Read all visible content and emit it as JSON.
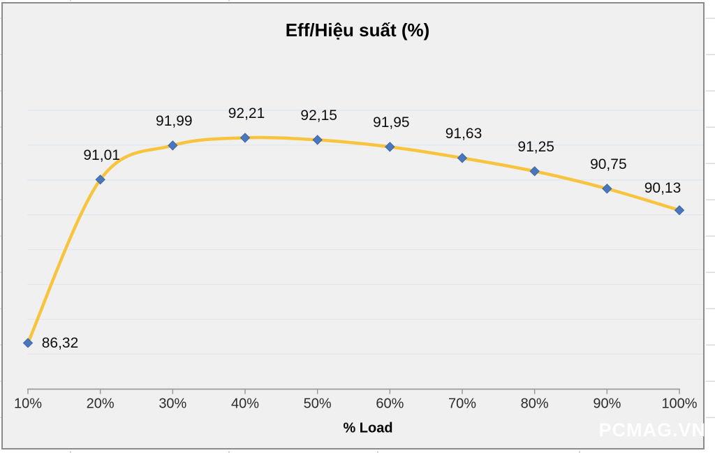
{
  "chart": {
    "title": "Eff/Hiệu suất (%)",
    "x_axis_title": "% Load",
    "watermark": "PCMAG.VN"
  },
  "chart_data": {
    "type": "line",
    "title": "Eff/Hiệu suất (%)",
    "xlabel": "% Load",
    "ylabel": "",
    "categories": [
      "10%",
      "20%",
      "30%",
      "40%",
      "50%",
      "60%",
      "70%",
      "80%",
      "90%",
      "100%"
    ],
    "series": [
      {
        "name": "Eff/Hiệu suất (%)",
        "values": [
          86.32,
          91.01,
          91.99,
          92.21,
          92.15,
          91.95,
          91.63,
          91.25,
          90.75,
          90.13
        ],
        "point_labels": [
          "86,32",
          "91,01",
          "91,99",
          "92,21",
          "92,15",
          "91,95",
          "91,63",
          "91,25",
          "90,75",
          "90,13"
        ],
        "label_positions": [
          "right",
          "above",
          "above",
          "above",
          "above",
          "above",
          "above",
          "above",
          "above",
          "above-left"
        ],
        "line_color": "#F8C43D",
        "marker_color": "#4A76BC",
        "marker_edge_color": "#3E66A8",
        "marker": "diamond",
        "smooth": true
      }
    ],
    "ylim": [
      85,
      93
    ],
    "grid": true,
    "gridline_values": [
      86,
      87,
      88,
      89,
      90,
      91,
      92,
      93
    ],
    "legend": "none",
    "y_axis_labels_visible": false
  },
  "colors": {
    "chart_bg": "#F0F0F0",
    "chart_border": "#8A8A8A",
    "gridline": "#DFE7F1",
    "axis": "#9B9B9B",
    "data_label_text": "#0D0D0D",
    "axis_text": "#2B2B2B",
    "watermark_text": "#FFFFFF"
  }
}
